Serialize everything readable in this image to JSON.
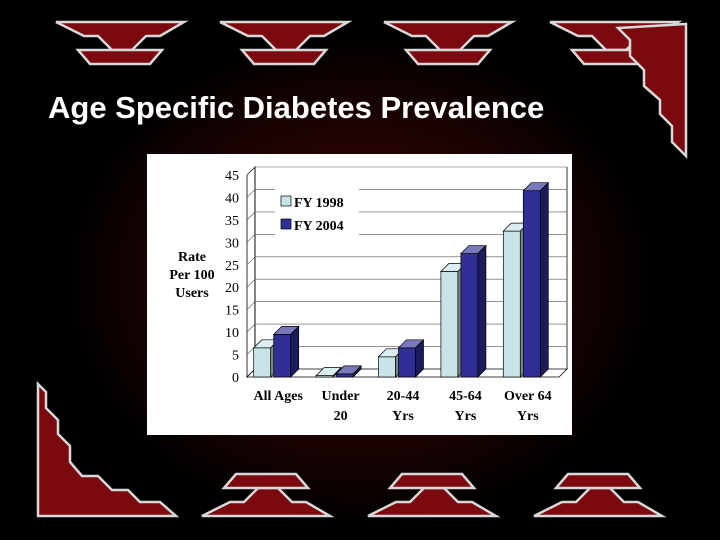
{
  "slide": {
    "title": "Age Specific Diabetes Prevalence"
  },
  "colors": {
    "background": "#000000",
    "ornament": "#7a0a10",
    "ornament_border": "#d8d8d8",
    "series_1998": "#c7e5e6",
    "series_2004": "#2f2f96"
  },
  "chart_data": {
    "type": "bar",
    "three_d": true,
    "title": "",
    "ylabel": "Rate Per 100 Users",
    "ylabel_lines": [
      "Rate",
      "Per 100",
      "Users"
    ],
    "ylim": [
      0,
      45
    ],
    "yticks": [
      0,
      5,
      10,
      15,
      20,
      25,
      30,
      35,
      40,
      45
    ],
    "categories": [
      "All Ages",
      "Under 20",
      "20-44 Yrs",
      "45-64 Yrs",
      "Over 64 Yrs"
    ],
    "category_lines": [
      [
        "All Ages"
      ],
      [
        "Under",
        "20"
      ],
      [
        "20-44",
        "Yrs"
      ],
      [
        "45-64",
        "Yrs"
      ],
      [
        "Over 64",
        "Yrs"
      ]
    ],
    "legend_position": "top-left",
    "series": [
      {
        "name": "FY 1998",
        "color": "#c7e5e6",
        "values": [
          6.5,
          0.3,
          4.5,
          23.5,
          32.5
        ]
      },
      {
        "name": "FY 2004",
        "color": "#2f2f96",
        "values": [
          9.5,
          0.7,
          6.5,
          27.5,
          41.5
        ]
      }
    ]
  }
}
